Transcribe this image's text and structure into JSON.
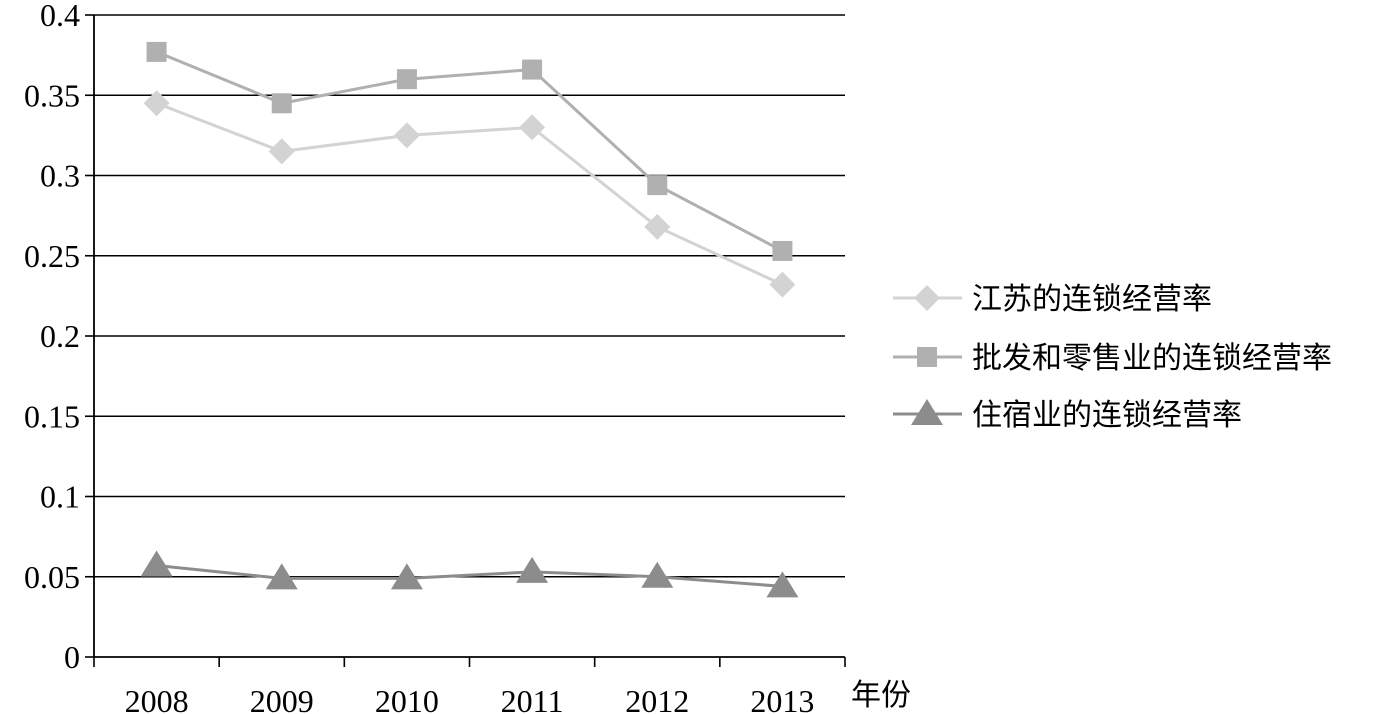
{
  "chart_data": {
    "type": "line",
    "categories": [
      "2008",
      "2009",
      "2010",
      "2011",
      "2012",
      "2013"
    ],
    "x_unit_label": "年份",
    "ylim": [
      0,
      0.4
    ],
    "y_ticks": [
      0,
      0.05,
      0.1,
      0.15,
      0.2,
      0.25,
      0.3,
      0.35,
      0.4
    ],
    "y_tick_labels": [
      "0",
      "0.05",
      "0.1",
      "0.15",
      "0.2",
      "0.25",
      "0.3",
      "0.35",
      "0.4"
    ],
    "grid": true,
    "legend_position": "right",
    "series": [
      {
        "name": "江苏的连锁经营率",
        "marker": "diamond",
        "color": "#d3d3d3",
        "values": [
          0.345,
          0.315,
          0.325,
          0.33,
          0.268,
          0.232
        ]
      },
      {
        "name": "批发和零售业的连锁经营率",
        "marker": "square",
        "color": "#b0b0b0",
        "values": [
          0.377,
          0.345,
          0.36,
          0.366,
          0.294,
          0.253
        ]
      },
      {
        "name": "住宿业的连锁经营率",
        "marker": "triangle",
        "color": "#8c8c8c",
        "values": [
          0.057,
          0.049,
          0.049,
          0.053,
          0.05,
          0.044
        ]
      }
    ]
  }
}
